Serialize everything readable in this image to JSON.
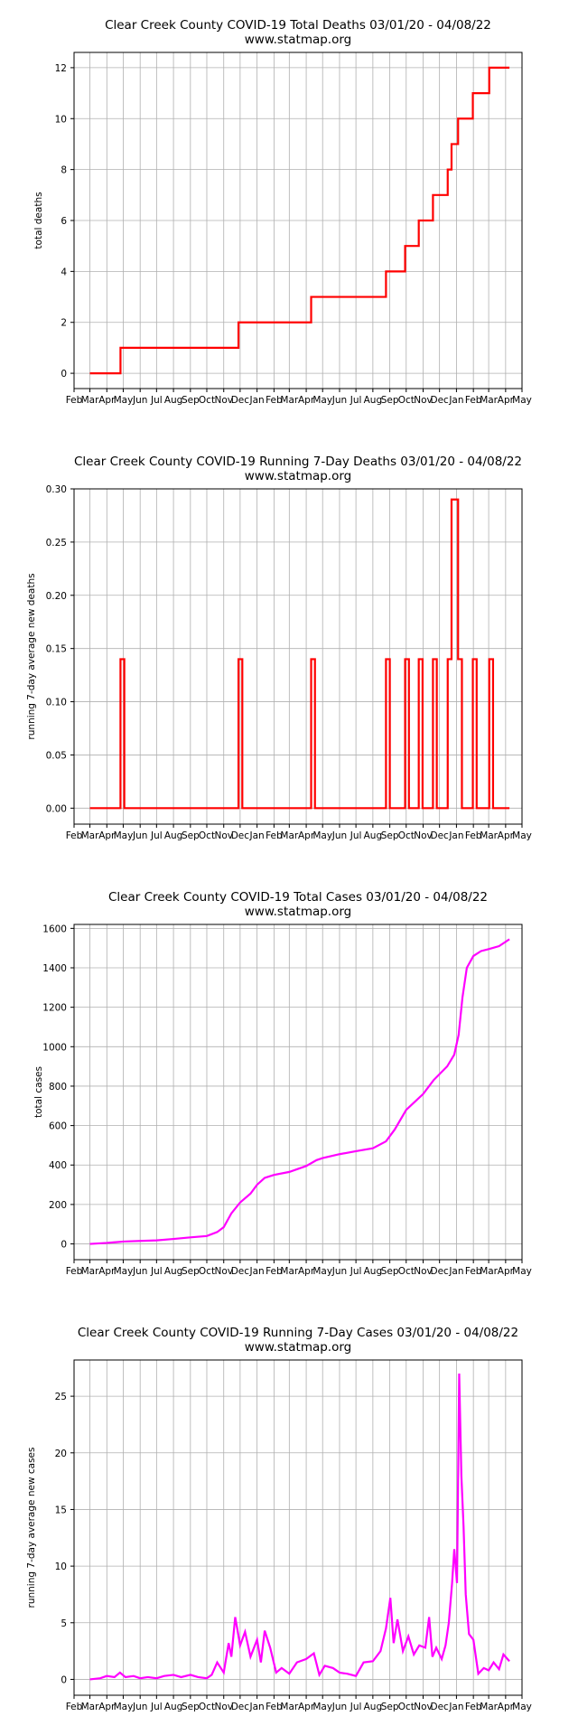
{
  "x_month_labels": [
    "Feb",
    "Mar",
    "Apr",
    "May",
    "Jun",
    "Jul",
    "Aug",
    "Sep",
    "Oct",
    "Nov",
    "Dec",
    "Jan",
    "Feb",
    "Mar",
    "Apr",
    "May",
    "Jun",
    "Jul",
    "Aug",
    "Sep",
    "Oct",
    "Nov",
    "Dec",
    "Jan",
    "Feb",
    "Mar",
    "Apr",
    "May"
  ],
  "chart_data": [
    {
      "type": "line",
      "title": "Clear Creek County COVID-19 Total Deaths 03/01/20 - 04/08/22",
      "subtitle": "www.statmap.org",
      "xlabel": "",
      "ylabel": "total deaths",
      "xlim": [
        "2020-02-01",
        "2022-05-01"
      ],
      "ylim": [
        -0.6,
        12.6
      ],
      "yticks": [
        0,
        2,
        4,
        6,
        8,
        10,
        12
      ],
      "ytick_labels": [
        "0",
        "2",
        "4",
        "6",
        "8",
        "10",
        "12"
      ],
      "color": "#ff0000",
      "step": true,
      "series": [
        {
          "x": [
            "2020-03-01",
            "2020-04-26",
            "2020-11-28",
            "2021-04-10",
            "2021-08-25",
            "2021-09-29",
            "2021-10-24",
            "2021-11-19",
            "2021-12-16",
            "2021-12-23",
            "2022-01-04",
            "2022-01-31",
            "2022-03-02",
            "2022-04-08"
          ],
          "values": [
            0,
            1,
            2,
            3,
            4,
            5,
            6,
            7,
            8,
            9,
            10,
            11,
            12,
            12
          ]
        }
      ]
    },
    {
      "type": "line",
      "title": "Clear Creek County COVID-19 Running 7-Day Deaths 03/01/20 - 04/08/22",
      "subtitle": "www.statmap.org",
      "xlabel": "",
      "ylabel": "running 7-day average new deaths",
      "xlim": [
        "2020-02-01",
        "2022-05-01"
      ],
      "ylim": [
        -0.015,
        0.3
      ],
      "yticks": [
        0,
        0.05,
        0.1,
        0.15,
        0.2,
        0.25,
        0.3
      ],
      "ytick_labels": [
        "0.00",
        "0.05",
        "0.10",
        "0.15",
        "0.20",
        "0.25",
        "0.30"
      ],
      "color": "#ff0000",
      "step": true,
      "series": [
        {
          "x": [
            "2020-03-01",
            "2020-04-26",
            "2020-05-03",
            "2020-11-28",
            "2020-12-05",
            "2021-04-10",
            "2021-04-17",
            "2021-08-25",
            "2021-09-01",
            "2021-09-29",
            "2021-10-06",
            "2021-10-24",
            "2021-10-31",
            "2021-11-19",
            "2021-11-26",
            "2021-12-16",
            "2021-12-23",
            "2022-01-04",
            "2022-01-11",
            "2022-01-31",
            "2022-02-07",
            "2022-03-02",
            "2022-03-09",
            "2022-04-08"
          ],
          "values": [
            0,
            0.14,
            0,
            0.14,
            0,
            0.14,
            0,
            0.14,
            0,
            0.14,
            0,
            0.14,
            0,
            0.14,
            0,
            0.14,
            0.29,
            0.14,
            0,
            0.14,
            0,
            0.14,
            0,
            0
          ]
        }
      ]
    },
    {
      "type": "line",
      "title": "Clear Creek County COVID-19 Total Cases 03/01/20 - 04/08/22",
      "subtitle": "www.statmap.org",
      "xlabel": "",
      "ylabel": "total cases",
      "xlim": [
        "2020-02-01",
        "2022-05-01"
      ],
      "ylim": [
        -80,
        1620
      ],
      "yticks": [
        0,
        200,
        400,
        600,
        800,
        1000,
        1200,
        1400,
        1600
      ],
      "ytick_labels": [
        "0",
        "200",
        "400",
        "600",
        "800",
        "1000",
        "1200",
        "1400",
        "1600"
      ],
      "color": "#ff00ff",
      "step": false,
      "series": [
        {
          "x": [
            "2020-03-01",
            "2020-04-01",
            "2020-05-01",
            "2020-06-01",
            "2020-07-01",
            "2020-08-01",
            "2020-09-01",
            "2020-10-01",
            "2020-10-20",
            "2020-11-01",
            "2020-11-15",
            "2020-12-01",
            "2020-12-20",
            "2021-01-01",
            "2021-01-15",
            "2021-02-01",
            "2021-03-01",
            "2021-04-01",
            "2021-04-20",
            "2021-05-01",
            "2021-06-01",
            "2021-07-01",
            "2021-08-01",
            "2021-08-25",
            "2021-09-10",
            "2021-10-01",
            "2021-11-01",
            "2021-11-20",
            "2021-12-15",
            "2021-12-28",
            "2022-01-05",
            "2022-01-12",
            "2022-01-20",
            "2022-02-01",
            "2022-02-15",
            "2022-03-01",
            "2022-03-20",
            "2022-04-08"
          ],
          "values": [
            0,
            5,
            12,
            15,
            18,
            25,
            33,
            40,
            60,
            85,
            155,
            210,
            255,
            300,
            335,
            350,
            365,
            395,
            425,
            435,
            455,
            470,
            485,
            520,
            580,
            680,
            760,
            830,
            900,
            960,
            1060,
            1250,
            1400,
            1460,
            1485,
            1495,
            1510,
            1545
          ]
        }
      ]
    },
    {
      "type": "line",
      "title": "Clear Creek County COVID-19 Running 7-Day Cases 03/01/20 - 04/08/22",
      "subtitle": "www.statmap.org",
      "xlabel": "",
      "ylabel": "running 7-day average new cases",
      "xlim": [
        "2020-02-01",
        "2022-05-01"
      ],
      "ylim": [
        -1.4,
        28.2
      ],
      "yticks": [
        0,
        5,
        10,
        15,
        20,
        25
      ],
      "ytick_labels": [
        "0",
        "5",
        "10",
        "15",
        "20",
        "25"
      ],
      "color": "#ff00ff",
      "step": false,
      "series": [
        {
          "x": [
            "2020-03-01",
            "2020-03-20",
            "2020-04-01",
            "2020-04-15",
            "2020-04-25",
            "2020-05-05",
            "2020-05-20",
            "2020-06-01",
            "2020-06-15",
            "2020-07-01",
            "2020-07-15",
            "2020-08-01",
            "2020-08-15",
            "2020-09-01",
            "2020-09-15",
            "2020-10-01",
            "2020-10-10",
            "2020-10-20",
            "2020-11-01",
            "2020-11-10",
            "2020-11-15",
            "2020-11-22",
            "2020-12-01",
            "2020-12-10",
            "2020-12-20",
            "2021-01-01",
            "2021-01-08",
            "2021-01-15",
            "2021-01-25",
            "2021-02-05",
            "2021-02-15",
            "2021-03-01",
            "2021-03-15",
            "2021-04-01",
            "2021-04-15",
            "2021-04-25",
            "2021-05-05",
            "2021-05-20",
            "2021-06-01",
            "2021-06-15",
            "2021-07-01",
            "2021-07-15",
            "2021-08-01",
            "2021-08-15",
            "2021-08-25",
            "2021-09-02",
            "2021-09-08",
            "2021-09-15",
            "2021-09-25",
            "2021-10-05",
            "2021-10-15",
            "2021-10-25",
            "2021-11-05",
            "2021-11-12",
            "2021-11-18",
            "2021-11-25",
            "2021-12-05",
            "2021-12-12",
            "2021-12-18",
            "2021-12-24",
            "2021-12-28",
            "2022-01-02",
            "2022-01-06",
            "2022-01-10",
            "2022-01-14",
            "2022-01-18",
            "2022-01-24",
            "2022-02-01",
            "2022-02-10",
            "2022-02-20",
            "2022-03-01",
            "2022-03-10",
            "2022-03-20",
            "2022-03-28",
            "2022-04-08"
          ],
          "values": [
            0,
            0.1,
            0.3,
            0.2,
            0.6,
            0.2,
            0.3,
            0.1,
            0.2,
            0.1,
            0.3,
            0.4,
            0.2,
            0.4,
            0.2,
            0.1,
            0.4,
            1.5,
            0.6,
            3.2,
            2.0,
            5.5,
            3.0,
            4.2,
            2.0,
            3.5,
            1.5,
            4.3,
            2.8,
            0.6,
            1.0,
            0.5,
            1.5,
            1.8,
            2.3,
            0.4,
            1.2,
            1.0,
            0.6,
            0.5,
            0.3,
            1.5,
            1.6,
            2.5,
            4.5,
            7.2,
            3.2,
            5.3,
            2.5,
            3.8,
            2.2,
            3.0,
            2.8,
            5.5,
            2.0,
            2.8,
            1.8,
            3.0,
            5.0,
            8.5,
            11.5,
            8.5,
            27.0,
            18.0,
            13.5,
            7.5,
            4.0,
            3.5,
            0.5,
            1.0,
            0.8,
            1.5,
            0.9,
            2.2,
            1.6
          ]
        }
      ]
    }
  ]
}
